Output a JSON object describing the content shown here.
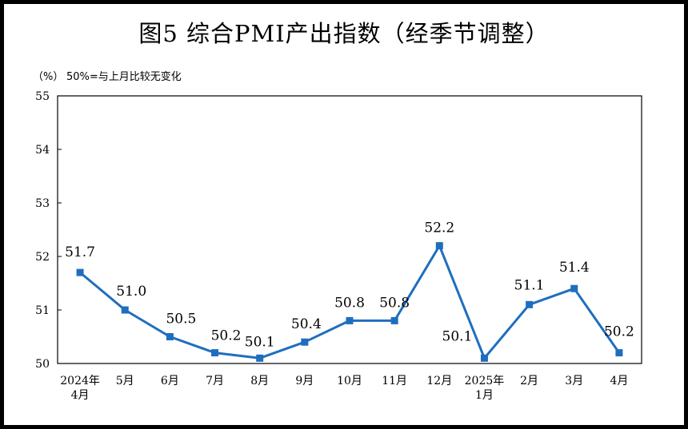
{
  "chart_data": {
    "type": "line",
    "title": "图5  综合PMI产出指数（经季节调整）",
    "unit": "（%）",
    "note": "50%=与上月比较无变化",
    "categories": [
      [
        "2024年",
        "4月"
      ],
      [
        "5月"
      ],
      [
        "6月"
      ],
      [
        "7月"
      ],
      [
        "8月"
      ],
      [
        "9月"
      ],
      [
        "10月"
      ],
      [
        "11月"
      ],
      [
        "12月"
      ],
      [
        "2025年",
        "1月"
      ],
      [
        "2月"
      ],
      [
        "3月"
      ],
      [
        "4月"
      ]
    ],
    "series": [
      {
        "values": [
          51.7,
          51.0,
          50.5,
          50.2,
          50.1,
          50.4,
          50.8,
          50.8,
          52.2,
          50.1,
          51.1,
          51.4,
          50.2
        ]
      }
    ],
    "data_labels": [
      "51.7",
      "51.0",
      "50.5",
      "50.2",
      "50.1",
      "50.4",
      "50.8",
      "50.8",
      "52.2",
      "50.1",
      "51.1",
      "51.4",
      "50.2"
    ],
    "y_ticks": [
      "50",
      "51",
      "52",
      "53",
      "54",
      "55"
    ],
    "ylim": [
      50,
      55
    ],
    "grid": false,
    "line_color": "#1f6ebe",
    "marker": "square"
  }
}
